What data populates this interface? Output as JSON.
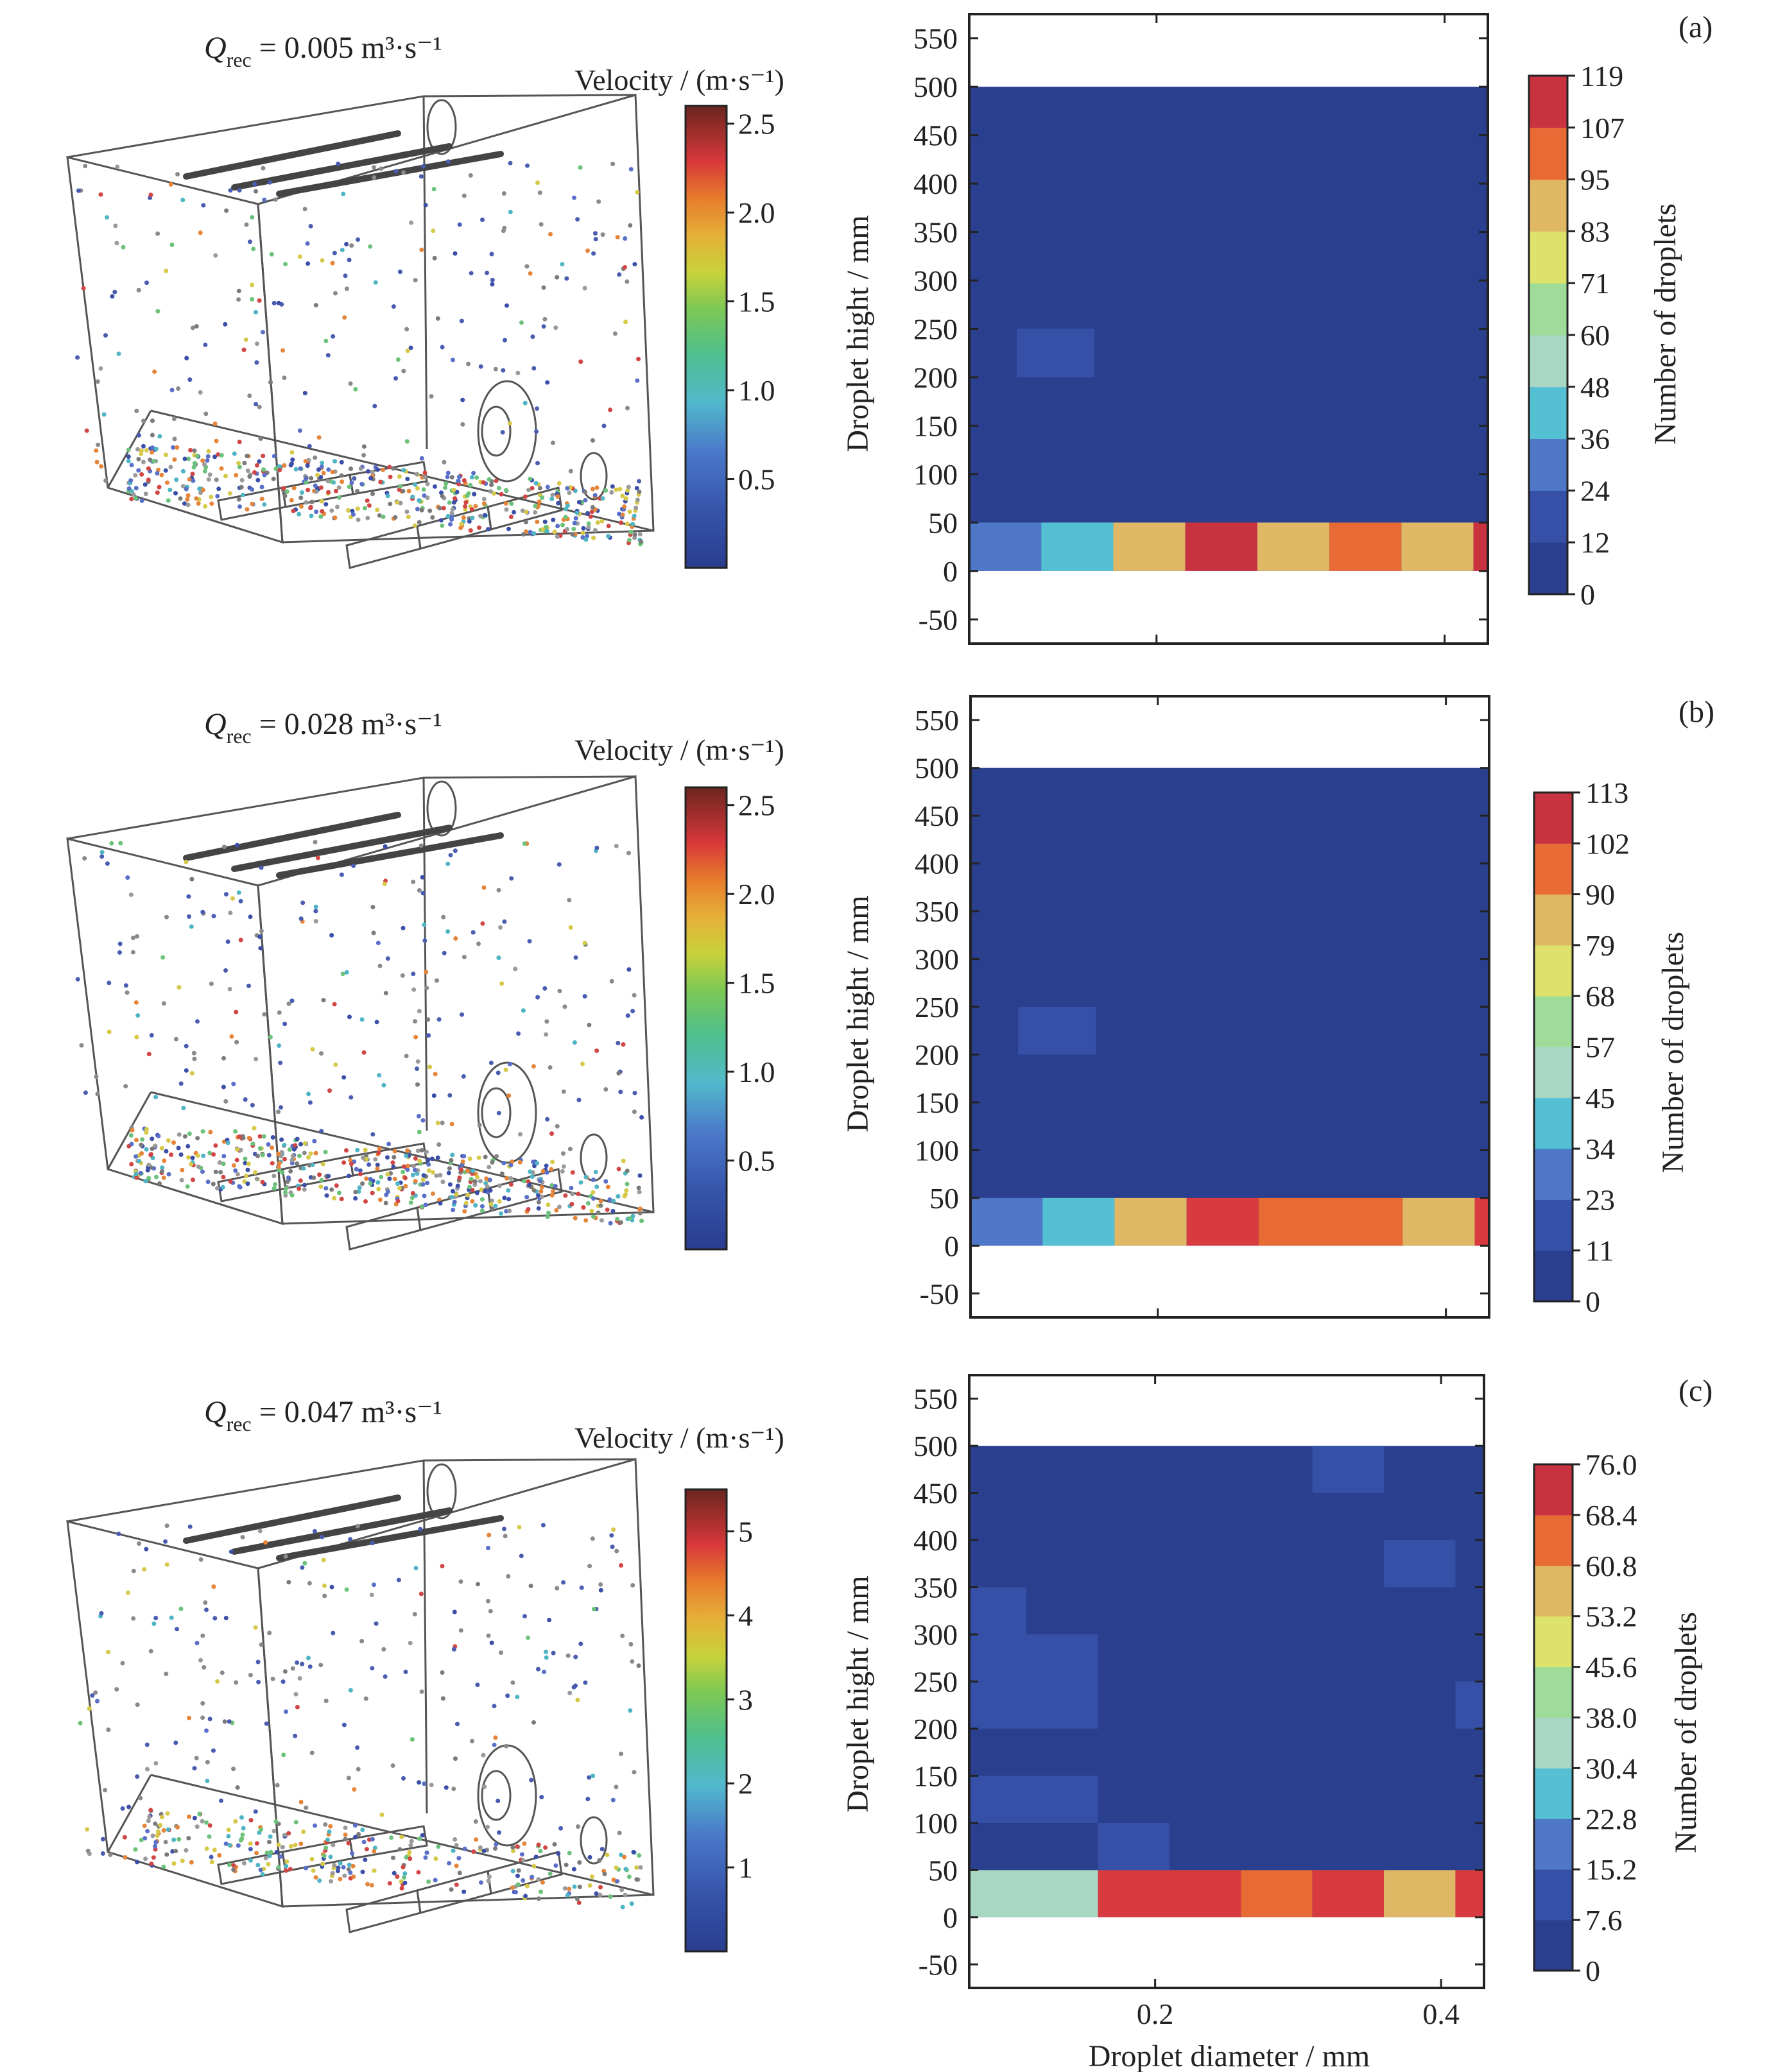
{
  "panels": [
    {
      "label": "(a)",
      "q_prefix": "Q",
      "q_sub": "rec",
      "q_value": " = 0.005 m³·s⁻¹",
      "velocity_title": "Velocity / (m·s⁻¹)",
      "velocity_ticks": [
        "2.5",
        "2.0",
        "1.5",
        "1.0",
        "0.5"
      ],
      "velocity_tick_values": [
        2.5,
        2.0,
        1.5,
        1.0,
        0.5
      ],
      "velocity_max": 2.6
    },
    {
      "label": "(b)",
      "q_prefix": "Q",
      "q_sub": "rec",
      "q_value": " = 0.028 m³·s⁻¹",
      "velocity_title": "Velocity / (m·s⁻¹)",
      "velocity_ticks": [
        "2.5",
        "2.0",
        "1.5",
        "1.0",
        "0.5"
      ],
      "velocity_tick_values": [
        2.5,
        2.0,
        1.5,
        1.0,
        0.5
      ],
      "velocity_max": 2.6
    },
    {
      "label": "(c)",
      "q_prefix": "Q",
      "q_sub": "rec",
      "q_value": " = 0.047 m³·s⁻¹",
      "velocity_title": "Velocity / (m·s⁻¹)",
      "velocity_ticks": [
        "5",
        "4",
        "3",
        "2",
        "1"
      ],
      "velocity_tick_values": [
        5,
        4,
        3,
        2,
        1
      ],
      "velocity_max": 5.5
    }
  ],
  "chart_data": [
    {
      "type": "heatmap",
      "title": "(a)",
      "xlabel": "",
      "ylabel": "Droplet hight / mm",
      "colorbar_label": "Number of droplets",
      "colorbar_ticks": [
        "119",
        "107",
        "95",
        "83",
        "71",
        "60",
        "48",
        "36",
        "24",
        "12",
        "0"
      ],
      "colorbar_max": 119,
      "xlim": [
        0.07,
        0.43
      ],
      "ylim": [
        -75,
        575
      ],
      "y_ticks": [
        "550",
        "500",
        "450",
        "400",
        "350",
        "300",
        "250",
        "200",
        "150",
        "100",
        "50",
        "0",
        "-50"
      ],
      "y_tick_values": [
        550,
        500,
        450,
        400,
        350,
        300,
        250,
        200,
        150,
        100,
        50,
        0,
        -50
      ],
      "x_ticks": [],
      "x_tick_values": [
        0.2,
        0.4
      ],
      "cell_x_edges": [
        0.07,
        0.12,
        0.17,
        0.22,
        0.27,
        0.32,
        0.37,
        0.42,
        0.43
      ],
      "cell_y_edges": [
        0,
        50,
        100,
        150,
        200,
        250,
        300,
        350,
        400,
        450,
        500
      ],
      "background_value": 6,
      "cells": [
        {
          "x0": 0.07,
          "x1": 0.12,
          "y0": 0,
          "y1": 50,
          "v": 27
        },
        {
          "x0": 0.12,
          "x1": 0.17,
          "y0": 0,
          "y1": 50,
          "v": 40
        },
        {
          "x0": 0.17,
          "x1": 0.22,
          "y0": 0,
          "y1": 50,
          "v": 88
        },
        {
          "x0": 0.22,
          "x1": 0.27,
          "y0": 0,
          "y1": 50,
          "v": 115
        },
        {
          "x0": 0.27,
          "x1": 0.32,
          "y0": 0,
          "y1": 50,
          "v": 88
        },
        {
          "x0": 0.32,
          "x1": 0.37,
          "y0": 0,
          "y1": 50,
          "v": 105
        },
        {
          "x0": 0.37,
          "x1": 0.42,
          "y0": 0,
          "y1": 50,
          "v": 88
        },
        {
          "x0": 0.42,
          "x1": 0.43,
          "y0": 0,
          "y1": 50,
          "v": 115
        },
        {
          "x0": 0.103,
          "x1": 0.157,
          "y0": 200,
          "y1": 250,
          "v": 14
        }
      ]
    },
    {
      "type": "heatmap",
      "title": "(b)",
      "xlabel": "",
      "ylabel": "Droplet hight / mm",
      "colorbar_label": "Number of  droplets",
      "colorbar_ticks": [
        "113",
        "102",
        "90",
        "79",
        "68",
        "57",
        "45",
        "34",
        "23",
        "11",
        "0"
      ],
      "colorbar_max": 113,
      "xlim": [
        0.07,
        0.43
      ],
      "ylim": [
        -75,
        575
      ],
      "y_ticks": [
        "550",
        "500",
        "450",
        "400",
        "350",
        "300",
        "250",
        "200",
        "150",
        "100",
        "50",
        "0",
        "-50"
      ],
      "y_tick_values": [
        550,
        500,
        450,
        400,
        350,
        300,
        250,
        200,
        150,
        100,
        50,
        0,
        -50
      ],
      "x_ticks": [],
      "x_tick_values": [
        0.2,
        0.4
      ],
      "cell_x_edges": [
        0.07,
        0.12,
        0.17,
        0.22,
        0.27,
        0.32,
        0.37,
        0.42,
        0.43
      ],
      "cell_y_edges": [
        0,
        50,
        100,
        150,
        200,
        250,
        300,
        350,
        400,
        450,
        500
      ],
      "background_value": 6,
      "cells": [
        {
          "x0": 0.07,
          "x1": 0.12,
          "y0": 0,
          "y1": 50,
          "v": 26
        },
        {
          "x0": 0.12,
          "x1": 0.17,
          "y0": 0,
          "y1": 50,
          "v": 38
        },
        {
          "x0": 0.17,
          "x1": 0.22,
          "y0": 0,
          "y1": 50,
          "v": 83
        },
        {
          "x0": 0.22,
          "x1": 0.27,
          "y0": 0,
          "y1": 50,
          "v": 108
        },
        {
          "x0": 0.27,
          "x1": 0.37,
          "y0": 0,
          "y1": 50,
          "v": 96
        },
        {
          "x0": 0.37,
          "x1": 0.42,
          "y0": 0,
          "y1": 50,
          "v": 83
        },
        {
          "x0": 0.42,
          "x1": 0.43,
          "y0": 0,
          "y1": 50,
          "v": 108
        },
        {
          "x0": 0.103,
          "x1": 0.157,
          "y0": 200,
          "y1": 250,
          "v": 13
        }
      ]
    },
    {
      "type": "heatmap",
      "title": "(c)",
      "xlabel": "Droplet diameter / mm",
      "ylabel": "Droplet hight / mm",
      "colorbar_label": "Number of  droplets",
      "colorbar_ticks": [
        "76.0",
        "68.4",
        "60.8",
        "53.2",
        "45.6",
        "38.0",
        "30.4",
        "22.8",
        "15.2",
        "7.6",
        "0"
      ],
      "colorbar_max": 76,
      "xlim": [
        0.07,
        0.43
      ],
      "ylim": [
        -75,
        575
      ],
      "y_ticks": [
        "550",
        "500",
        "450",
        "400",
        "350",
        "300",
        "250",
        "200",
        "150",
        "100",
        "50",
        "0",
        "-50"
      ],
      "y_tick_values": [
        550,
        500,
        450,
        400,
        350,
        300,
        250,
        200,
        150,
        100,
        50,
        0,
        -50
      ],
      "x_ticks": [
        "0.2",
        "0.4"
      ],
      "x_tick_values": [
        0.2,
        0.4
      ],
      "cell_x_edges": [
        0.07,
        0.12,
        0.17,
        0.22,
        0.27,
        0.32,
        0.37,
        0.42,
        0.43
      ],
      "cell_y_edges": [
        0,
        50,
        100,
        150,
        200,
        250,
        300,
        350,
        400,
        450,
        500
      ],
      "background_value": 4,
      "cells": [
        {
          "x0": 0.07,
          "x1": 0.16,
          "y0": 0,
          "y1": 50,
          "v": 34
        },
        {
          "x0": 0.16,
          "x1": 0.26,
          "y0": 0,
          "y1": 50,
          "v": 72
        },
        {
          "x0": 0.26,
          "x1": 0.31,
          "y0": 0,
          "y1": 50,
          "v": 64
        },
        {
          "x0": 0.31,
          "x1": 0.36,
          "y0": 0,
          "y1": 50,
          "v": 72
        },
        {
          "x0": 0.36,
          "x1": 0.41,
          "y0": 0,
          "y1": 50,
          "v": 55
        },
        {
          "x0": 0.41,
          "x1": 0.43,
          "y0": 0,
          "y1": 50,
          "v": 72
        },
        {
          "x0": 0.07,
          "x1": 0.16,
          "y0": 100,
          "y1": 150,
          "v": 9
        },
        {
          "x0": 0.16,
          "x1": 0.21,
          "y0": 50,
          "y1": 100,
          "v": 9
        },
        {
          "x0": 0.07,
          "x1": 0.16,
          "y0": 200,
          "y1": 300,
          "v": 9
        },
        {
          "x0": 0.07,
          "x1": 0.11,
          "y0": 300,
          "y1": 350,
          "v": 9
        },
        {
          "x0": 0.31,
          "x1": 0.36,
          "y0": 450,
          "y1": 500,
          "v": 9
        },
        {
          "x0": 0.36,
          "x1": 0.41,
          "y0": 350,
          "y1": 400,
          "v": 9
        },
        {
          "x0": 0.41,
          "x1": 0.43,
          "y0": 200,
          "y1": 250,
          "v": 9
        }
      ]
    }
  ]
}
